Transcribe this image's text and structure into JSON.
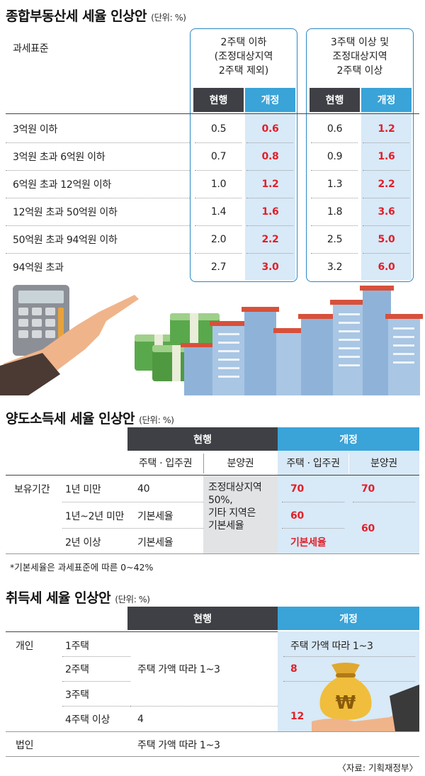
{
  "section1": {
    "title": "종합부동산세 세율 인상안",
    "unit": "(단위: %)",
    "row_header": "과세표준",
    "group1_label_lines": [
      "2주택 이하",
      "(조정대상지역",
      "2주택 제외)"
    ],
    "group2_label_lines": [
      "3주택 이상 및",
      "조정대상지역",
      "2주택 이상"
    ],
    "current_label": "현행",
    "revised_label": "개정"
  },
  "section2": {
    "title": "양도소득세 세율 인상안",
    "unit": "(단위: %)",
    "current_label": "현행",
    "revised_label": "개정",
    "sub_house": "주택 · 입주권",
    "sub_presale": "분양권",
    "holding_label": "보유기간",
    "rows": [
      {
        "period": "1년 미만",
        "current_house": "40",
        "revised_house": "70"
      },
      {
        "period": "1년~2년 미만",
        "current_house": "기본세율",
        "revised_house": "60"
      },
      {
        "period": "2년 이상",
        "current_house": "기본세율",
        "revised_house": "기본세율"
      }
    ],
    "current_presale_lines": [
      "조정대상지역",
      "50%,",
      "기타 지역은",
      "기본세율"
    ],
    "revised_presale": [
      "70",
      "60"
    ],
    "footnote": "*기본세율은 과세표준에 따른 0~42%"
  },
  "section3": {
    "title": "취득세 세율 인상안",
    "unit": "(단위: %)",
    "current_label": "현행",
    "revised_label": "개정",
    "individual_label": "개인",
    "corporate_label": "법인",
    "rows": [
      "1주택",
      "2주택",
      "3주택",
      "4주택 이상"
    ],
    "current_1to3": "주택 가액 따라 1~3",
    "current_4plus": "4",
    "current_corp": "주택 가액 따라 1~3",
    "revised_1": "주택 가액 따라 1~3",
    "revised_2": "8",
    "revised_3plus": "12",
    "source": "〈자료: 기획재정부〉"
  },
  "chart_data": [
    {
      "type": "table",
      "title": "종합부동산세 세율 인상안",
      "unit": "%",
      "categories": [
        "3억원 이하",
        "3억원 초과 6억원 이하",
        "6억원 초과 12억원 이하",
        "12억원 초과 50억원 이하",
        "50억원 초과 94억원 이하",
        "94억원 초과"
      ],
      "series": [
        {
          "name": "2주택 이하 현행",
          "values": [
            "0.5",
            "0.7",
            "1.0",
            "1.4",
            "2.0",
            "2.7"
          ]
        },
        {
          "name": "2주택 이하 개정",
          "values": [
            "0.6",
            "0.8",
            "1.2",
            "1.6",
            "2.2",
            "3.0"
          ]
        },
        {
          "name": "3주택 이상 현행",
          "values": [
            "0.6",
            "0.9",
            "1.3",
            "1.8",
            "2.5",
            "3.2"
          ]
        },
        {
          "name": "3주택 이상 개정",
          "values": [
            "1.2",
            "1.6",
            "2.2",
            "3.6",
            "5.0",
            "6.0"
          ]
        }
      ]
    }
  ],
  "colors": {
    "accent_blue": "#3aa3d8",
    "highlight_bg": "#d8e9f7",
    "dark_header": "#3f4045",
    "red_value": "#e0202a"
  },
  "icons": [
    "calculator-icon",
    "pointing-hand-icon",
    "money-stack-icon",
    "apartment-buildings-icon",
    "money-bag-icon",
    "won-sign-icon"
  ]
}
